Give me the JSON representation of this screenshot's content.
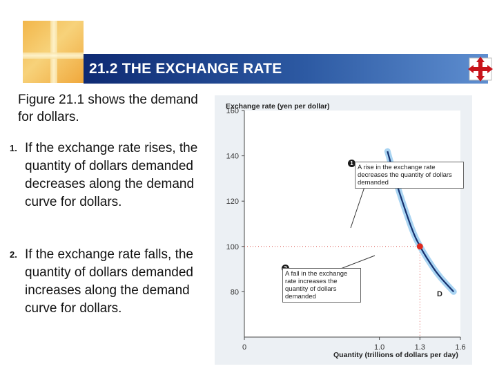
{
  "slide": {
    "title": "21.2 THE EXCHANGE RATE",
    "intro": "Figure 21.1 shows the demand for dollars.",
    "points": [
      {
        "num": "1.",
        "text": "If the exchange rate rises, the quantity of dollars demanded decreases along the demand curve for dollars."
      },
      {
        "num": "2.",
        "text": "If the exchange rate falls, the quantity of dollars demanded increases along the demand curve for dollars."
      }
    ],
    "nav_icon": "four-way-arrow-icon"
  },
  "chart_data": {
    "type": "line",
    "ylabel": "Exchange rate (yen per dollar)",
    "xlabel": "Quantity (trillions of dollars per day)",
    "xlim": [
      0,
      1.6
    ],
    "ylim": [
      60,
      160
    ],
    "y_ticks": [
      "80",
      "100",
      "120",
      "140",
      "160"
    ],
    "x_ticks": [
      "0",
      "1.0",
      "1.3",
      "1.6"
    ],
    "series": [
      {
        "name": "D",
        "x": [
          1.06,
          1.12,
          1.18,
          1.25,
          1.3,
          1.36,
          1.44,
          1.55
        ],
        "y": [
          142,
          129,
          118,
          106,
          100,
          94,
          87,
          80
        ]
      }
    ],
    "highlight_point": {
      "x": 1.3,
      "y": 100
    },
    "annotations": [
      {
        "num": "1",
        "text": "A rise in the exchange rate decreases the quantity of dollars demanded"
      },
      {
        "num": "2",
        "text": "A fall in the exchange rate increases the quantity of dollars demanded"
      }
    ],
    "colors": {
      "curve": "#15306e",
      "halo": "#a9d4f2",
      "point": "#e02a1e",
      "dotted": "#d9534f"
    }
  }
}
